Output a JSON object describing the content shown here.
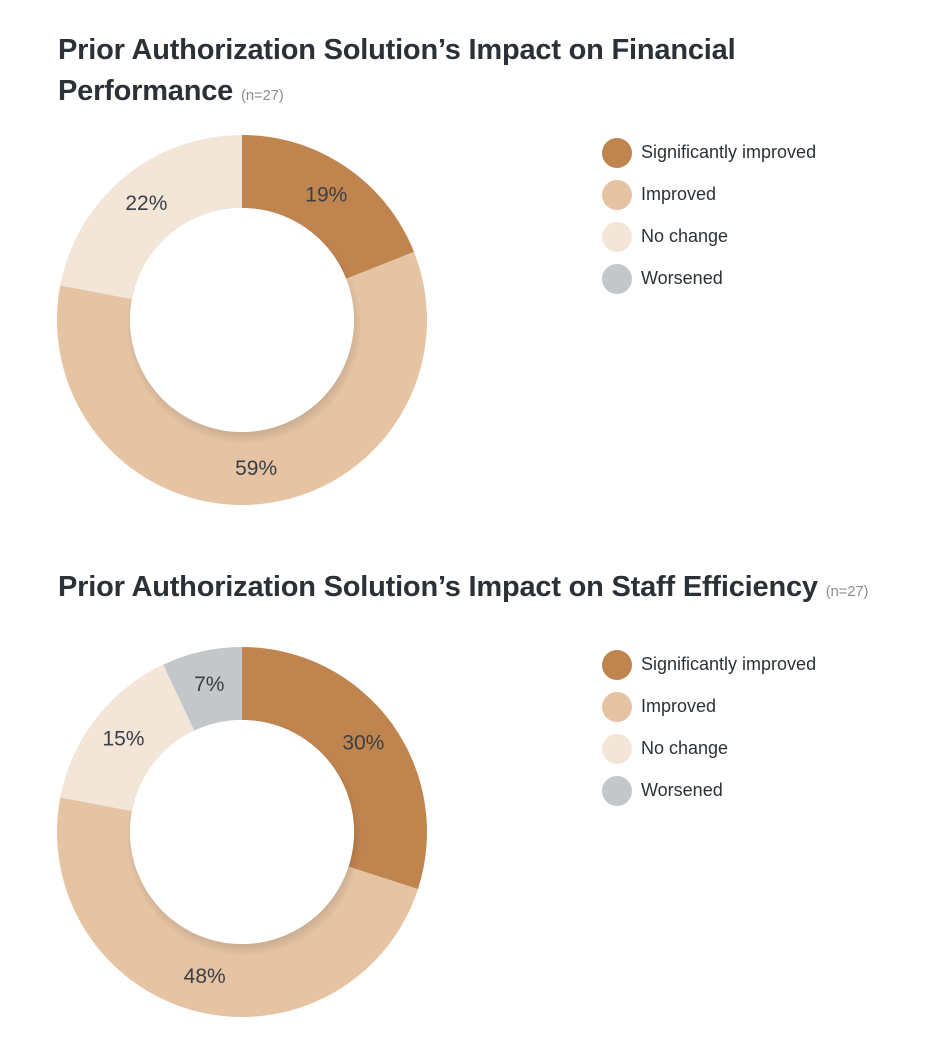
{
  "chart_data": [
    {
      "type": "pie",
      "title": "Prior Authorization Solution’s Impact on Financial Performance",
      "subtitle": "(n=27)",
      "categories": [
        "Significantly improved",
        "Improved",
        "No change",
        "Worsened"
      ],
      "values": [
        19,
        59,
        22,
        0
      ],
      "value_labels": [
        "19%",
        "59%",
        "22%",
        null
      ],
      "colors": [
        "#c0844f",
        "#e5c3a3",
        "#f4e5d9",
        "#c3c7ca"
      ]
    },
    {
      "type": "pie",
      "title": "Prior Authorization Solution’s Impact on Staff Efficiency",
      "subtitle": "(n=27)",
      "categories": [
        "Significantly improved",
        "Improved",
        "No change",
        "Worsened"
      ],
      "values": [
        30,
        48,
        15,
        7
      ],
      "value_labels": [
        "30%",
        "48%",
        "15%",
        "7%"
      ],
      "colors": [
        "#c0844f",
        "#e5c3a3",
        "#f4e5d9",
        "#c3c7ca"
      ]
    }
  ]
}
